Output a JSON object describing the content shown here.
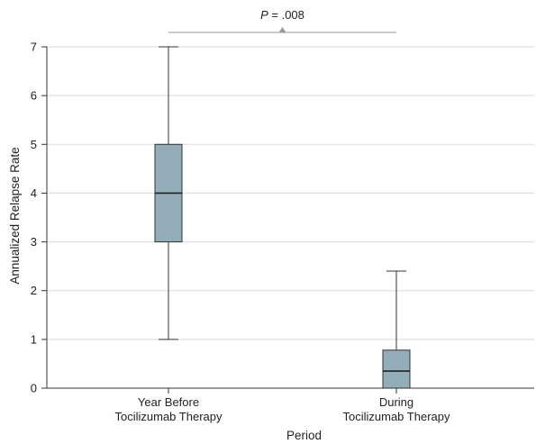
{
  "chart_data": {
    "type": "box",
    "categories": [
      "Year Before Tocilizumab Therapy",
      "During Tocilizumab Therapy"
    ],
    "category_lines": [
      [
        "Year Before",
        "Tocilizumab Therapy"
      ],
      [
        "During",
        "Tocilizumab Therapy"
      ]
    ],
    "boxes": [
      {
        "category": "Year Before Tocilizumab Therapy",
        "min": 1.0,
        "q1": 3.0,
        "median": 4.0,
        "q3": 5.0,
        "max": 7.0
      },
      {
        "category": "During Tocilizumab Therapy",
        "min": 0.0,
        "q1": 0.0,
        "median": 0.35,
        "q3": 0.78,
        "max": 2.4
      }
    ],
    "xlabel": "Period",
    "ylabel": "Annualized Relapse Rate",
    "ylim": [
      0,
      7
    ],
    "yticks": [
      "0",
      "1",
      "2",
      "3",
      "4",
      "5",
      "6",
      "7"
    ],
    "grid": "horizontal",
    "annotation": {
      "italic": "P",
      "rest": " = .008"
    },
    "colors": {
      "box_fill": "#93aeb8",
      "grid": "#d9d9d9",
      "axis": "#333333",
      "bracket": "#9a9a9a"
    }
  }
}
